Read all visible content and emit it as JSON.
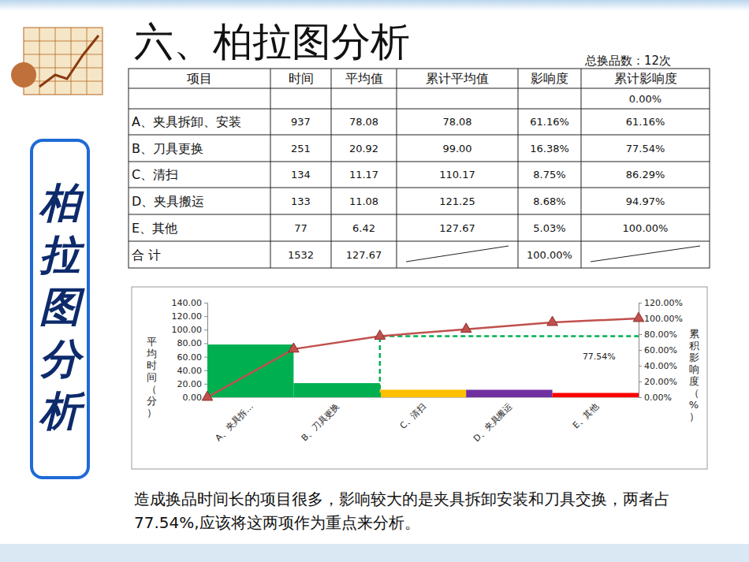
{
  "slide": {
    "title": "六、柏拉图分析",
    "side_title": "柏拉图分析",
    "note": "总换品数：12次",
    "caption": "造成换品时间长的项目很多，影响较大的是夹具拆卸安装和刀具交换，两者占77.54%,应该将这两项作为重点来分析。"
  },
  "table": {
    "header": [
      "项目",
      "时间",
      "平均值",
      "累计平均值",
      "影响度",
      "累计影响度"
    ],
    "rows": [
      [
        null,
        null,
        null,
        null,
        null,
        "0.00%"
      ],
      [
        "A、夹具拆卸、安装",
        "937",
        "78.08",
        "78.08",
        "61.16%",
        "61.16%"
      ],
      [
        "B、刀具更换",
        "251",
        "20.92",
        "99.00",
        "16.38%",
        "77.54%"
      ],
      [
        "C、清扫",
        "134",
        "11.17",
        "110.17",
        "8.75%",
        "86.29%"
      ],
      [
        "D、夹具搬运",
        "133",
        "11.08",
        "121.25",
        "8.68%",
        "94.97%"
      ],
      [
        "E、其他",
        "77",
        "6.42",
        "127.67",
        "5.03%",
        "100.00%"
      ],
      [
        "合 计",
        "1532",
        "127.67",
        null,
        "100.00%",
        null
      ]
    ]
  },
  "chart_data": {
    "type": "pareto",
    "categories": [
      "A、夹具拆…",
      "B、刀具更换",
      "C、清扫",
      "D、夹具搬运",
      "E、其他"
    ],
    "xlim": [
      0,
      5
    ],
    "y_label": "平均时间（分）",
    "y2_label": "累积影响度（%）",
    "ylim": [
      0,
      140
    ],
    "yticks": [
      {
        "value": 0,
        "label": "0.00"
      },
      {
        "value": 20,
        "label": "20.00"
      },
      {
        "value": 40,
        "label": "40.00"
      },
      {
        "value": 60,
        "label": "60.00"
      },
      {
        "value": 80,
        "label": "80.00"
      },
      {
        "value": 100,
        "label": "100.00"
      },
      {
        "value": 120,
        "label": "120.00"
      },
      {
        "value": 140,
        "label": "140.00"
      }
    ],
    "y2lim": [
      0,
      120
    ],
    "y2ticks": [
      {
        "value": 0,
        "label": "0.00%"
      },
      {
        "value": 20,
        "label": "20.00%"
      },
      {
        "value": 40,
        "label": "40.00%"
      },
      {
        "value": 60,
        "label": "60.00%"
      },
      {
        "value": 80,
        "label": "80.00%"
      },
      {
        "value": 100,
        "label": "100.00%"
      },
      {
        "value": 120,
        "label": "120.00%"
      }
    ],
    "grid": false,
    "series": [
      {
        "type": "bar",
        "values": [
          78.08,
          20.92,
          11.17,
          11.08,
          6.42
        ],
        "colors": [
          "#00b050",
          "#00b050",
          "#ffc000",
          "#7030a0",
          "#ff0000"
        ]
      },
      {
        "type": "line",
        "axis": "y2",
        "x": [
          0,
          1,
          2,
          3,
          4,
          5
        ],
        "values": [
          0,
          61.16,
          77.54,
          86.29,
          94.97,
          100
        ],
        "color": "#c0504d",
        "marker": "triangle"
      }
    ],
    "annotations": [
      {
        "text": "77.54%",
        "value": 77.54,
        "x": 2,
        "axis": "y2",
        "color": "#00b050",
        "line_style": "dashed"
      }
    ]
  }
}
